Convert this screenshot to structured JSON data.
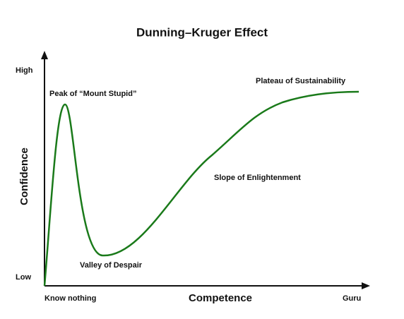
{
  "title": "Dunning–Kruger Effect",
  "y_axis": {
    "label": "Confidence",
    "low": "Low",
    "high": "High"
  },
  "x_axis": {
    "label": "Competence",
    "low": "Know nothing",
    "high": "Guru"
  },
  "annotations": [
    "Peak of “Mount Stupid”",
    "Valley of Despair",
    "Slope of Enlightenment",
    "Plateau of Sustainability"
  ]
}
